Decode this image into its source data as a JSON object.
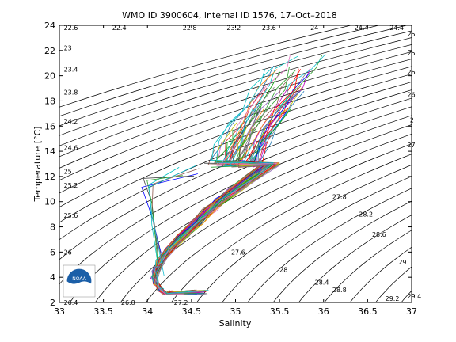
{
  "chart_data": {
    "type": "line",
    "title": "WMO ID 3900604, internal ID 1576, 17–Oct–2018",
    "xlabel": "Salinity",
    "ylabel": "Temperature [°C]",
    "xlim": [
      33,
      37
    ],
    "ylim": [
      2,
      24
    ],
    "xticks": [
      "33",
      "33.5",
      "34",
      "34.5",
      "35",
      "35.5",
      "36",
      "36.5",
      "37"
    ],
    "yticks": [
      "2",
      "4",
      "6",
      "8",
      "10",
      "12",
      "14",
      "16",
      "18",
      "20",
      "22",
      "24"
    ],
    "grid": false,
    "isopycnals": {
      "description_values": [
        22.4,
        22.8,
        23.2,
        23.6,
        24,
        24.4,
        24.8,
        25.2,
        25.6,
        26,
        26.4,
        26.8,
        27.2,
        27.6,
        28,
        28.4,
        28.8,
        29.2,
        29.6,
        30
      ],
      "labels": [
        {
          "text": "22.4",
          "s": 33.6,
          "t": 23.8
        },
        {
          "text": "22.8",
          "s": 34.4,
          "t": 23.8
        },
        {
          "text": "23.2",
          "s": 34.9,
          "t": 23.8
        },
        {
          "text": "23.6",
          "s": 35.3,
          "t": 23.8
        },
        {
          "text": "24",
          "s": 35.85,
          "t": 23.8
        },
        {
          "text": "24.4",
          "s": 36.35,
          "t": 23.8
        },
        {
          "text": "22.6",
          "s": 33.05,
          "t": 23.8
        },
        {
          "text": "23",
          "s": 33.05,
          "t": 22.2
        },
        {
          "text": "23.4",
          "s": 33.05,
          "t": 20.5
        },
        {
          "text": "23.8",
          "s": 33.05,
          "t": 18.7
        },
        {
          "text": "24.2",
          "s": 33.05,
          "t": 16.4
        },
        {
          "text": "24.6",
          "s": 33.05,
          "t": 14.3
        },
        {
          "text": "25",
          "s": 33.05,
          "t": 12.4
        },
        {
          "text": "25.2",
          "s": 33.05,
          "t": 11.3
        },
        {
          "text": "25.6",
          "s": 33.05,
          "t": 8.9
        },
        {
          "text": "26",
          "s": 33.05,
          "t": 6.0
        },
        {
          "text": "26.4",
          "s": 33.05,
          "t": 2.0
        },
        {
          "text": "26.8",
          "s": 33.7,
          "t": 2.0
        },
        {
          "text": "27.2",
          "s": 34.3,
          "t": 2.0
        },
        {
          "text": "27.6",
          "s": 34.95,
          "t": 6.0
        },
        {
          "text": "28",
          "s": 35.5,
          "t": 4.6
        },
        {
          "text": "27.8",
          "s": 36.1,
          "t": 10.4
        },
        {
          "text": "28.2",
          "s": 36.4,
          "t": 9.0
        },
        {
          "text": "28.6",
          "s": 36.55,
          "t": 7.4
        },
        {
          "text": "28.4",
          "s": 35.9,
          "t": 3.6
        },
        {
          "text": "28.8",
          "s": 36.1,
          "t": 3.0
        },
        {
          "text": "29",
          "s": 36.85,
          "t": 5.2
        },
        {
          "text": "29.2",
          "s": 36.7,
          "t": 2.3
        },
        {
          "text": "29.4",
          "s": 36.95,
          "t": 2.5
        },
        {
          "text": "25",
          "s": 36.95,
          "t": 23.3
        },
        {
          "text": "25",
          "s": 36.95,
          "t": 21.8
        },
        {
          "text": "26",
          "s": 36.95,
          "t": 20.3
        },
        {
          "text": "26",
          "s": 36.95,
          "t": 18.5
        },
        {
          "text": "2",
          "s": 36.98,
          "t": 16.5
        },
        {
          "text": "27",
          "s": 36.95,
          "t": 14.5
        },
        {
          "text": "24.4",
          "s": 36.75,
          "t": 23.8
        }
      ]
    },
    "profile_envelope": {
      "deep": {
        "s": [
          34.2,
          34.15,
          34.1,
          34.08,
          34.1,
          34.15,
          34.25,
          34.4,
          34.55,
          34.7,
          34.85,
          35.0,
          35.2,
          35.4
        ],
        "t": [
          2.7,
          3.0,
          3.5,
          4.0,
          4.6,
          5.3,
          6.2,
          7.3,
          8.3,
          9.3,
          10.2,
          11.0,
          12.0,
          13.0
        ]
      },
      "upper": {
        "s": [
          35.0,
          35.1,
          35.2,
          35.35,
          35.5,
          35.65,
          35.8,
          35.9
        ],
        "t": [
          13.0,
          14.5,
          16.0,
          17.5,
          19.0,
          20.5,
          21.5,
          22.5
        ]
      }
    },
    "series_count": 80
  },
  "logo": {
    "text": "NOAA"
  }
}
